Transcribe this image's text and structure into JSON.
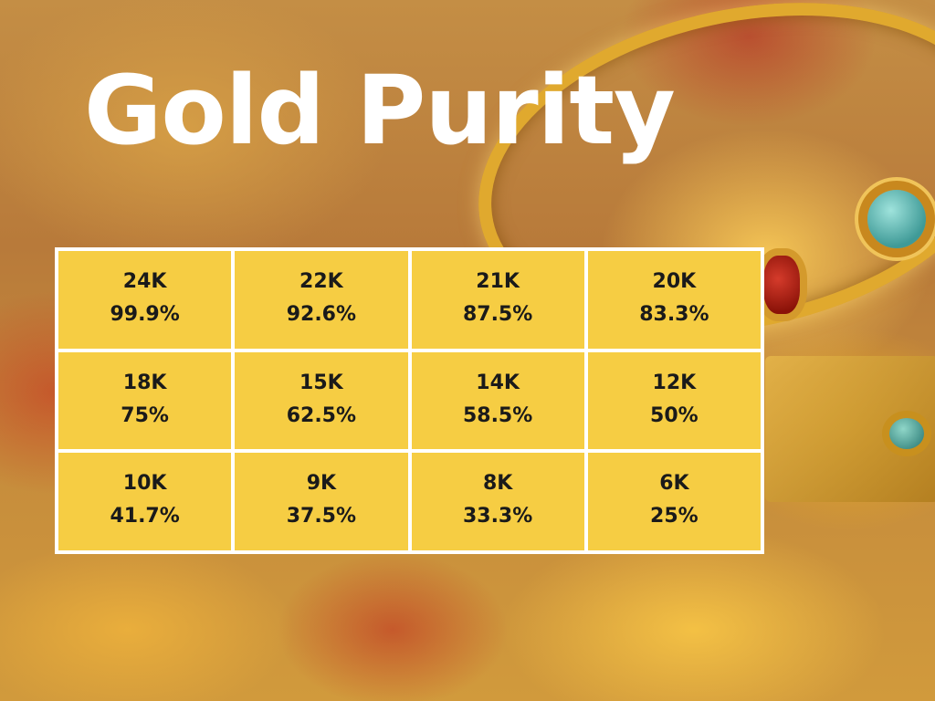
{
  "title": "Gold Purity",
  "purity_table": [
    {
      "karat": "24K",
      "purity": "99.9%"
    },
    {
      "karat": "22K",
      "purity": "92.6%"
    },
    {
      "karat": "21K",
      "purity": "87.5%"
    },
    {
      "karat": "20K",
      "purity": "83.3%"
    },
    {
      "karat": "18K",
      "purity": "75%"
    },
    {
      "karat": "15K",
      "purity": "62.5%"
    },
    {
      "karat": "14K",
      "purity": "58.5%"
    },
    {
      "karat": "12K",
      "purity": "50%"
    },
    {
      "karat": "10K",
      "purity": "41.7%"
    },
    {
      "karat": "9K",
      "purity": "37.5%"
    },
    {
      "karat": "8K",
      "purity": "33.3%"
    },
    {
      "karat": "6K",
      "purity": "25%"
    }
  ],
  "colors": {
    "cell_background": "#f6cd43",
    "grid_lines": "#ffffff",
    "title_text": "#ffffff",
    "cell_text": "#1a1a1a"
  }
}
